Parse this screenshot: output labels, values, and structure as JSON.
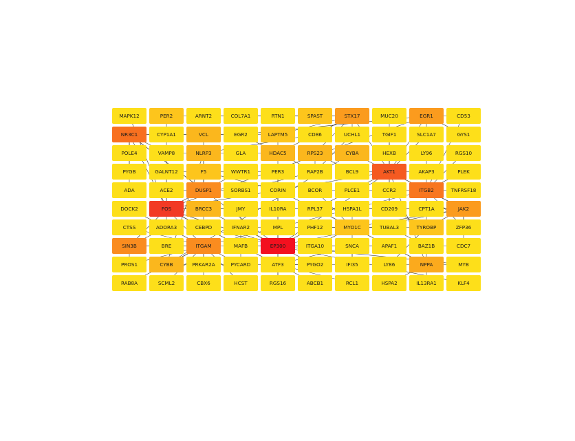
{
  "network": {
    "nodes": [
      {
        "label": "MAPK12",
        "color": "#fddf1a"
      },
      {
        "label": "PER2",
        "color": "#fdc51c"
      },
      {
        "label": "ARNT2",
        "color": "#fddf1a"
      },
      {
        "label": "COL7A1",
        "color": "#fddf1a"
      },
      {
        "label": "RTN1",
        "color": "#fddf1a"
      },
      {
        "label": "SPAST",
        "color": "#fdc51c"
      },
      {
        "label": "STX17",
        "color": "#fb9b1e"
      },
      {
        "label": "MUC20",
        "color": "#fddf1a"
      },
      {
        "label": "EGR1",
        "color": "#fb9b1e"
      },
      {
        "label": "CD53",
        "color": "#fddf1a"
      },
      {
        "label": "NR3C1",
        "color": "#f8701f"
      },
      {
        "label": "CYP1A1",
        "color": "#fddf1a"
      },
      {
        "label": "VCL",
        "color": "#fbb71d"
      },
      {
        "label": "EGR2",
        "color": "#fddf1a"
      },
      {
        "label": "LAPTM5",
        "color": "#fdc51c"
      },
      {
        "label": "CD86",
        "color": "#fddf1a"
      },
      {
        "label": "UCHL1",
        "color": "#fddf1a"
      },
      {
        "label": "TGIF1",
        "color": "#fddf1a"
      },
      {
        "label": "SLC1A7",
        "color": "#fddf1a"
      },
      {
        "label": "GYS1",
        "color": "#fddf1a"
      },
      {
        "label": "POLE4",
        "color": "#fddf1a"
      },
      {
        "label": "VAMP8",
        "color": "#fddf1a"
      },
      {
        "label": "NLRP3",
        "color": "#fbb71d"
      },
      {
        "label": "GLA",
        "color": "#fddf1a"
      },
      {
        "label": "HDAC5",
        "color": "#fbb71d"
      },
      {
        "label": "RPS23",
        "color": "#fbb71d"
      },
      {
        "label": "CYBA",
        "color": "#fbb71d"
      },
      {
        "label": "HEXB",
        "color": "#fddf1a"
      },
      {
        "label": "LY96",
        "color": "#fddf1a"
      },
      {
        "label": "RGS10",
        "color": "#fddf1a"
      },
      {
        "label": "PYGB",
        "color": "#fddf1a"
      },
      {
        "label": "GALNT12",
        "color": "#fddf1a"
      },
      {
        "label": "F5",
        "color": "#fdc51c"
      },
      {
        "label": "WWTR1",
        "color": "#fddf1a"
      },
      {
        "label": "PER3",
        "color": "#fddf1a"
      },
      {
        "label": "RAP2B",
        "color": "#fddf1a"
      },
      {
        "label": "BCL9",
        "color": "#fddf1a"
      },
      {
        "label": "AKT1",
        "color": "#f55a21"
      },
      {
        "label": "AKAP3",
        "color": "#fddf1a"
      },
      {
        "label": "PLEK",
        "color": "#fddf1a"
      },
      {
        "label": "ADA",
        "color": "#fddf1a"
      },
      {
        "label": "ACE2",
        "color": "#fddf1a"
      },
      {
        "label": "DUSP1",
        "color": "#fa8c1f"
      },
      {
        "label": "SORBS1",
        "color": "#fddf1a"
      },
      {
        "label": "CORIN",
        "color": "#fddf1a"
      },
      {
        "label": "BCOR",
        "color": "#fddf1a"
      },
      {
        "label": "PLCE1",
        "color": "#fddf1a"
      },
      {
        "label": "CCR2",
        "color": "#fddf1a"
      },
      {
        "label": "ITGB2",
        "color": "#f8761f"
      },
      {
        "label": "TNFRSF18",
        "color": "#fddf1a"
      },
      {
        "label": "DOCK2",
        "color": "#fddf1a"
      },
      {
        "label": "FOS",
        "color": "#f23a24"
      },
      {
        "label": "BRCC3",
        "color": "#fbb71d"
      },
      {
        "label": "JMY",
        "color": "#fddf1a"
      },
      {
        "label": "IL10RA",
        "color": "#fddf1a"
      },
      {
        "label": "RPL37",
        "color": "#fddf1a"
      },
      {
        "label": "HSPA1L",
        "color": "#fddf1a"
      },
      {
        "label": "CD209",
        "color": "#fddf1a"
      },
      {
        "label": "CPT1A",
        "color": "#fddf1a"
      },
      {
        "label": "JAK2",
        "color": "#fb9b1e"
      },
      {
        "label": "CTSS",
        "color": "#fddf1a"
      },
      {
        "label": "ADORA3",
        "color": "#fddf1a"
      },
      {
        "label": "CEBPD",
        "color": "#fddf1a"
      },
      {
        "label": "IFNAR2",
        "color": "#fddf1a"
      },
      {
        "label": "MPL",
        "color": "#fddf1a"
      },
      {
        "label": "PHF12",
        "color": "#fddf1a"
      },
      {
        "label": "MYO1C",
        "color": "#fdc51c"
      },
      {
        "label": "TUBAL3",
        "color": "#fddf1a"
      },
      {
        "label": "TYROBP",
        "color": "#fdc51c"
      },
      {
        "label": "ZFP36",
        "color": "#fddf1a"
      },
      {
        "label": "SIN3B",
        "color": "#fa8c1f"
      },
      {
        "label": "BRE",
        "color": "#fddf1a"
      },
      {
        "label": "ITGAM",
        "color": "#fa8c1f"
      },
      {
        "label": "MAFB",
        "color": "#fddf1a"
      },
      {
        "label": "EP300",
        "color": "#f3101f"
      },
      {
        "label": "ITGA10",
        "color": "#fddf1a"
      },
      {
        "label": "SNCA",
        "color": "#fddf1a"
      },
      {
        "label": "APAF1",
        "color": "#fddf1a"
      },
      {
        "label": "BAZ1B",
        "color": "#fddf1a"
      },
      {
        "label": "CDC7",
        "color": "#fddf1a"
      },
      {
        "label": "PROS1",
        "color": "#fddf1a"
      },
      {
        "label": "CYBB",
        "color": "#fbb71d"
      },
      {
        "label": "PRKAR2A",
        "color": "#fddf1a"
      },
      {
        "label": "PYCARD",
        "color": "#fddf1a"
      },
      {
        "label": "ATF3",
        "color": "#fddf1a"
      },
      {
        "label": "PYGO2",
        "color": "#fddf1a"
      },
      {
        "label": "IFI35",
        "color": "#fddf1a"
      },
      {
        "label": "LY86",
        "color": "#fddf1a"
      },
      {
        "label": "NPPA",
        "color": "#fbaa1d"
      },
      {
        "label": "MYB",
        "color": "#fddf1a"
      },
      {
        "label": "RAB8A",
        "color": "#fddf1a"
      },
      {
        "label": "SCML2",
        "color": "#fddf1a"
      },
      {
        "label": "CBX6",
        "color": "#fddf1a"
      },
      {
        "label": "HCST",
        "color": "#fddf1a"
      },
      {
        "label": "RGS16",
        "color": "#fddf1a"
      },
      {
        "label": "ABCB1",
        "color": "#fddf1a"
      },
      {
        "label": "RCL1",
        "color": "#fddf1a"
      },
      {
        "label": "HSPA2",
        "color": "#fddf1a"
      },
      {
        "label": "IL13RA1",
        "color": "#fddf1a"
      },
      {
        "label": "KLF4",
        "color": "#fddf1a"
      }
    ],
    "edges": [
      [
        "FOS",
        "EP300"
      ],
      [
        "FOS",
        "AKT1"
      ],
      [
        "FOS",
        "DUSP1"
      ],
      [
        "FOS",
        "NR3C1"
      ],
      [
        "FOS",
        "EGR1"
      ],
      [
        "FOS",
        "ATF3"
      ],
      [
        "FOS",
        "JAK2"
      ],
      [
        "FOS",
        "ADORA3"
      ],
      [
        "FOS",
        "CEBPD"
      ],
      [
        "FOS",
        "SIN3B"
      ],
      [
        "FOS",
        "BRCC3"
      ],
      [
        "FOS",
        "GALNT12"
      ],
      [
        "FOS",
        "MAPK12"
      ],
      [
        "FOS",
        "ITGAM"
      ],
      [
        "FOS",
        "PER2"
      ],
      [
        "EP300",
        "AKT1"
      ],
      [
        "EP300",
        "NR3C1"
      ],
      [
        "EP300",
        "SIN3B"
      ],
      [
        "EP300",
        "MYB"
      ],
      [
        "EP300",
        "HDAC5"
      ],
      [
        "EP300",
        "SNCA"
      ],
      [
        "EP300",
        "JAK2"
      ],
      [
        "EP300",
        "MAFB"
      ],
      [
        "EP300",
        "ATF3"
      ],
      [
        "EP300",
        "KLF4"
      ],
      [
        "EP300",
        "CEBPD"
      ],
      [
        "EP300",
        "BRCC3"
      ],
      [
        "EP300",
        "PHF12"
      ],
      [
        "EP300",
        "MPL"
      ],
      [
        "EP300",
        "IFNAR2"
      ],
      [
        "EP300",
        "RGS16"
      ],
      [
        "EP300",
        "ITGA10"
      ],
      [
        "EP300",
        "PYGO2"
      ],
      [
        "EP300",
        "APAF1"
      ],
      [
        "EP300",
        "PER3"
      ],
      [
        "AKT1",
        "JAK2"
      ],
      [
        "AKT1",
        "ITGB2"
      ],
      [
        "AKT1",
        "NPPA"
      ],
      [
        "AKT1",
        "STX17"
      ],
      [
        "AKT1",
        "EGR1"
      ],
      [
        "AKT1",
        "BCL9"
      ],
      [
        "AKT1",
        "CCR2"
      ],
      [
        "AKT1",
        "SLC1A7"
      ],
      [
        "AKT1",
        "CYBA"
      ],
      [
        "AKT1",
        "HEXB"
      ],
      [
        "AKT1",
        "AKAP3"
      ],
      [
        "AKT1",
        "TGIF1"
      ],
      [
        "AKT1",
        "MUC20"
      ],
      [
        "AKT1",
        "PLCE1"
      ],
      [
        "AKT1",
        "CD209"
      ],
      [
        "ITGB2",
        "ITGAM"
      ],
      [
        "ITGB2",
        "TYROBP"
      ],
      [
        "ITGB2",
        "JAK2"
      ],
      [
        "ITGB2",
        "CD53"
      ],
      [
        "ITGB2",
        "CCR2"
      ],
      [
        "ITGB2",
        "CPT1A"
      ],
      [
        "ITGB2",
        "RGS10"
      ],
      [
        "ITGB2",
        "PLEK"
      ],
      [
        "ITGB2",
        "LY96"
      ],
      [
        "ITGB2",
        "TNFRSF18"
      ],
      [
        "ITGB2",
        "ZFP36"
      ],
      [
        "NR3C1",
        "VCL"
      ],
      [
        "NR3C1",
        "CYP1A1"
      ],
      [
        "NR3C1",
        "DUSP1"
      ],
      [
        "NR3C1",
        "POLE4"
      ],
      [
        "NR3C1",
        "VAMP8"
      ],
      [
        "NR3C1",
        "PYGB"
      ],
      [
        "NR3C1",
        "ADA"
      ],
      [
        "DUSP1",
        "NLRP3"
      ],
      [
        "DUSP1",
        "F5"
      ],
      [
        "DUSP1",
        "SORBS1"
      ],
      [
        "DUSP1",
        "ACE2"
      ],
      [
        "DUSP1",
        "VCL"
      ],
      [
        "DUSP1",
        "WWTR1"
      ],
      [
        "ITGAM",
        "CYBB"
      ],
      [
        "ITGAM",
        "BRE"
      ],
      [
        "ITGAM",
        "PRKAR2A"
      ],
      [
        "ITGAM",
        "PYCARD"
      ],
      [
        "ITGAM",
        "SCML2"
      ],
      [
        "ITGAM",
        "CBX6"
      ],
      [
        "ITGAM",
        "PROS1"
      ],
      [
        "ITGAM",
        "RAB8A"
      ],
      [
        "ITGAM",
        "HCST"
      ],
      [
        "ITGAM",
        "CTSS"
      ],
      [
        "ITGAM",
        "DOCK2"
      ],
      [
        "SIN3B",
        "ADORA3"
      ],
      [
        "SIN3B",
        "BRE"
      ],
      [
        "SIN3B",
        "PROS1"
      ],
      [
        "CYBB",
        "CYBA"
      ],
      [
        "CYBB",
        "NLRP3"
      ],
      [
        "CYBB",
        "PYCARD"
      ],
      [
        "STX17",
        "SPAST"
      ],
      [
        "STX17",
        "RTN1"
      ],
      [
        "STX17",
        "LAPTM5"
      ],
      [
        "STX17",
        "UCHL1"
      ],
      [
        "STX17",
        "CD86"
      ],
      [
        "STX17",
        "HDAC5"
      ],
      [
        "STX17",
        "RPS23"
      ],
      [
        "EGR1",
        "EGR2"
      ],
      [
        "EGR1",
        "GYS1"
      ],
      [
        "EGR1",
        "CD53"
      ],
      [
        "EGR1",
        "SLC1A7"
      ],
      [
        "JAK2",
        "MYO1C"
      ],
      [
        "JAK2",
        "TYROBP"
      ],
      [
        "JAK2",
        "HSPA1L"
      ],
      [
        "JAK2",
        "CPT1A"
      ],
      [
        "JAK2",
        "ZFP36"
      ],
      [
        "JAK2",
        "CDC7"
      ],
      [
        "MYO1C",
        "HSPA1L"
      ],
      [
        "MYO1C",
        "RPL37"
      ],
      [
        "MYO1C",
        "PHF12"
      ],
      [
        "MYO1C",
        "TUBAL3"
      ],
      [
        "MYO1C",
        "IFI35"
      ],
      [
        "MYO1C",
        "ITGA10"
      ],
      [
        "MYO1C",
        "BCOR"
      ],
      [
        "MYO1C",
        "MPL"
      ],
      [
        "NPPA",
        "CORIN"
      ],
      [
        "NPPA",
        "LY86"
      ],
      [
        "NPPA",
        "BAZ1B"
      ],
      [
        "NPPA",
        "MYB"
      ],
      [
        "NPPA",
        "IL13RA1"
      ],
      [
        "NPPA",
        "HSPA2"
      ],
      [
        "NPPA",
        "APAF1"
      ],
      [
        "HDAC5",
        "RAP2B"
      ],
      [
        "HDAC5",
        "GLA"
      ],
      [
        "HDAC5",
        "LAPTM5"
      ],
      [
        "HDAC5",
        "EGR2"
      ],
      [
        "RPS23",
        "RAP2B"
      ],
      [
        "RPS23",
        "CYBA"
      ],
      [
        "RPS23",
        "BCL9"
      ],
      [
        "BRCC3",
        "JMY"
      ],
      [
        "BRCC3",
        "IL10RA"
      ],
      [
        "BRCC3",
        "CEBPD"
      ],
      [
        "F5",
        "PER3"
      ],
      [
        "F5",
        "CORIN"
      ],
      [
        "F5",
        "GALNT12"
      ],
      [
        "ATF3",
        "PYGO2"
      ],
      [
        "ATF3",
        "RCL1"
      ],
      [
        "ATF3",
        "ABCB1"
      ],
      [
        "ATF3",
        "RGS16"
      ],
      [
        "ATF3",
        "IFI35"
      ],
      [
        "ATF3",
        "SNCA"
      ],
      [
        "TYROBP",
        "TUBAL3"
      ],
      [
        "TYROBP",
        "CD209"
      ],
      [
        "TYROBP",
        "LY86"
      ],
      [
        "SPAST",
        "PER2"
      ],
      [
        "SPAST",
        "ARNT2"
      ],
      [
        "SPAST",
        "COL7A1"
      ],
      [
        "NLRP3",
        "GLA"
      ],
      [
        "NLRP3",
        "CD86"
      ],
      [
        "NLRP3",
        "VAMP8"
      ],
      [
        "VCL",
        "EGR2"
      ],
      [
        "VCL",
        "LAPTM5"
      ],
      [
        "VCL",
        "CYP1A1"
      ],
      [
        "PLCE1",
        "BCOR"
      ],
      [
        "PLCE1",
        "RPL37"
      ],
      [
        "PLCE1",
        "CCR2"
      ],
      [
        "IFNAR2",
        "MPL"
      ],
      [
        "IFNAR2",
        "MAFB"
      ],
      [
        "IFNAR2",
        "JMY"
      ],
      [
        "RAP2B",
        "UCHL1"
      ],
      [
        "RAP2B",
        "SORBS1"
      ],
      [
        "CD209",
        "HSPA1L"
      ],
      [
        "CD209",
        "CCR2"
      ],
      [
        "PYCARD",
        "ATF3"
      ],
      [
        "PYCARD",
        "MAFB"
      ],
      [
        "SNCA",
        "APAF1"
      ],
      [
        "SNCA",
        "IFI35"
      ],
      [
        "BAZ1B",
        "CDC7"
      ],
      [
        "BAZ1B",
        "TUBAL3"
      ],
      [
        "IL10RA",
        "CORIN"
      ],
      [
        "IL10RA",
        "RPL37"
      ]
    ]
  }
}
